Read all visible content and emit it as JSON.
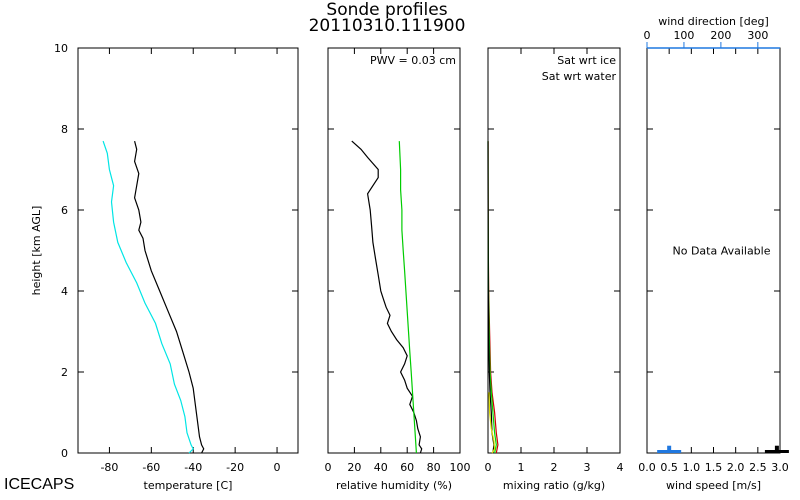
{
  "title": {
    "line1": "Sonde profiles",
    "line2": "20110310.111900"
  },
  "footer_label": "ICECAPS",
  "shared_y": {
    "label": "height [km AGL]",
    "ylim": [
      0,
      10
    ],
    "ticks": [
      0,
      2,
      4,
      6,
      8,
      10
    ]
  },
  "chart_data": [
    {
      "id": "temperature",
      "type": "line",
      "xlabel": "temperature [C]",
      "xlim": [
        -95,
        10
      ],
      "xticks": [
        -80,
        -60,
        -40,
        -20,
        0
      ],
      "series": [
        {
          "color": "#000000",
          "points": [
            [
              -36,
              0
            ],
            [
              -35,
              0.1
            ],
            [
              -36,
              0.2
            ],
            [
              -37,
              0.4
            ],
            [
              -38,
              0.8
            ],
            [
              -39,
              1.2
            ],
            [
              -40,
              1.6
            ],
            [
              -42,
              2.0
            ],
            [
              -45,
              2.5
            ],
            [
              -48,
              3.0
            ],
            [
              -52,
              3.5
            ],
            [
              -56,
              4.0
            ],
            [
              -60,
              4.5
            ],
            [
              -63,
              5.0
            ],
            [
              -64,
              5.3
            ],
            [
              -66,
              5.5
            ],
            [
              -65,
              5.7
            ],
            [
              -66,
              6.0
            ],
            [
              -68,
              6.3
            ],
            [
              -67,
              6.6
            ],
            [
              -66,
              6.9
            ],
            [
              -68,
              7.2
            ],
            [
              -67,
              7.5
            ],
            [
              -68,
              7.7
            ]
          ]
        },
        {
          "color": "#00e5e5",
          "points": [
            [
              -42,
              0
            ],
            [
              -40,
              0.1
            ],
            [
              -41,
              0.2
            ],
            [
              -43,
              0.5
            ],
            [
              -44,
              0.9
            ],
            [
              -46,
              1.3
            ],
            [
              -49,
              1.7
            ],
            [
              -51,
              2.2
            ],
            [
              -55,
              2.7
            ],
            [
              -58,
              3.2
            ],
            [
              -63,
              3.7
            ],
            [
              -67,
              4.2
            ],
            [
              -72,
              4.7
            ],
            [
              -76,
              5.2
            ],
            [
              -78,
              5.7
            ],
            [
              -79,
              6.2
            ],
            [
              -78,
              6.6
            ],
            [
              -80,
              7.0
            ],
            [
              -81,
              7.4
            ],
            [
              -83,
              7.7
            ]
          ]
        }
      ]
    },
    {
      "id": "humidity",
      "type": "line",
      "xlabel": "relative humidity (%)",
      "xlim": [
        0,
        100
      ],
      "xticks": [
        0,
        20,
        40,
        60,
        80,
        100
      ],
      "annotation": "PWV = 0.03 cm",
      "series": [
        {
          "color": "#000000",
          "points": [
            [
              70,
              0
            ],
            [
              71,
              0.1
            ],
            [
              69,
              0.2
            ],
            [
              70,
              0.4
            ],
            [
              68,
              0.6
            ],
            [
              67,
              0.8
            ],
            [
              65,
              1.0
            ],
            [
              62,
              1.2
            ],
            [
              64,
              1.4
            ],
            [
              60,
              1.6
            ],
            [
              58,
              1.8
            ],
            [
              55,
              2.0
            ],
            [
              58,
              2.2
            ],
            [
              60,
              2.4
            ],
            [
              57,
              2.6
            ],
            [
              52,
              2.8
            ],
            [
              48,
              3.0
            ],
            [
              45,
              3.2
            ],
            [
              47,
              3.4
            ],
            [
              44,
              3.6
            ],
            [
              42,
              3.8
            ],
            [
              40,
              4.0
            ],
            [
              38,
              4.4
            ],
            [
              36,
              4.8
            ],
            [
              34,
              5.2
            ],
            [
              33,
              5.6
            ],
            [
              32,
              6.0
            ],
            [
              30,
              6.4
            ],
            [
              38,
              6.8
            ],
            [
              38,
              7.0
            ],
            [
              30,
              7.3
            ],
            [
              25,
              7.5
            ],
            [
              18,
              7.7
            ]
          ]
        },
        {
          "color": "#00cc00",
          "points": [
            [
              67,
              0
            ],
            [
              66,
              0.5
            ],
            [
              65,
              1.0
            ],
            [
              64,
              1.5
            ],
            [
              63,
              2.0
            ],
            [
              62,
              2.5
            ],
            [
              61,
              3.0
            ],
            [
              60,
              3.5
            ],
            [
              59,
              4.0
            ],
            [
              58,
              4.5
            ],
            [
              57,
              5.0
            ],
            [
              56,
              5.5
            ],
            [
              56,
              6.0
            ],
            [
              55,
              6.5
            ],
            [
              55,
              7.0
            ],
            [
              54,
              7.7
            ]
          ]
        }
      ]
    },
    {
      "id": "mixing",
      "type": "line",
      "xlabel": "mixing ratio (g/kg)",
      "xlim": [
        0,
        4
      ],
      "xticks": [
        0,
        1,
        2,
        3,
        4
      ],
      "legend": [
        {
          "label": "Sat wrt ice",
          "color": "#00dd00"
        },
        {
          "label": "Sat wrt water",
          "color": "#cc0000"
        }
      ],
      "series": [
        {
          "color": "#cc0000",
          "points": [
            [
              0.25,
              0
            ],
            [
              0.3,
              0.2
            ],
            [
              0.25,
              0.5
            ],
            [
              0.2,
              1.0
            ],
            [
              0.12,
              1.5
            ],
            [
              0.08,
              2.0
            ],
            [
              0.05,
              3.0
            ],
            [
              0.02,
              4.0
            ],
            [
              0.01,
              5.0
            ],
            [
              0.005,
              6.0
            ],
            [
              0.003,
              7.0
            ],
            [
              0.002,
              7.7
            ]
          ]
        },
        {
          "color": "#00dd00",
          "points": [
            [
              0.2,
              0
            ],
            [
              0.25,
              0.2
            ],
            [
              0.2,
              0.5
            ],
            [
              0.15,
              1.0
            ],
            [
              0.1,
              1.5
            ],
            [
              0.06,
              2.0
            ],
            [
              0.035,
              3.0
            ],
            [
              0.015,
              4.0
            ],
            [
              0.008,
              5.0
            ],
            [
              0.004,
              6.0
            ],
            [
              0.002,
              7.0
            ],
            [
              0.001,
              7.7
            ]
          ]
        },
        {
          "color": "#000000",
          "points": [
            [
              0.15,
              0
            ],
            [
              0.18,
              0.2
            ],
            [
              0.12,
              0.5
            ],
            [
              0.1,
              1.0
            ],
            [
              0.06,
              1.5
            ],
            [
              0.04,
              2.0
            ],
            [
              0.02,
              3.0
            ],
            [
              0.01,
              4.0
            ],
            [
              0.005,
              5.0
            ],
            [
              0.002,
              6.0
            ],
            [
              0.001,
              7.0
            ],
            [
              0.0005,
              7.7
            ]
          ]
        },
        {
          "color": "#dddd00",
          "points": [
            [
              0.12,
              0
            ],
            [
              0.2,
              0.1
            ],
            [
              0.18,
              0.3
            ],
            [
              0.1,
              0.6
            ],
            [
              0.05,
              1.0
            ],
            [
              0.03,
              1.5
            ]
          ]
        }
      ]
    },
    {
      "id": "wind",
      "type": "bar",
      "xlabel": "wind speed [m/s]",
      "xlim": [
        0,
        3
      ],
      "xticks": [
        "0.0",
        "0.5",
        "1.0",
        "1.5",
        "2.0",
        "2.5",
        "3.0"
      ],
      "top_axis": {
        "label": "wind direction [deg]",
        "xlim": [
          0,
          360
        ],
        "xticks": [
          0,
          100,
          200,
          300
        ],
        "color": "#1f78e0"
      },
      "message": "No Data Available",
      "markers": [
        {
          "color": "#1f78e0",
          "center": 0.5,
          "height": 0.18
        },
        {
          "color": "#000000",
          "center": 2.93,
          "height": 0.18
        }
      ]
    }
  ]
}
